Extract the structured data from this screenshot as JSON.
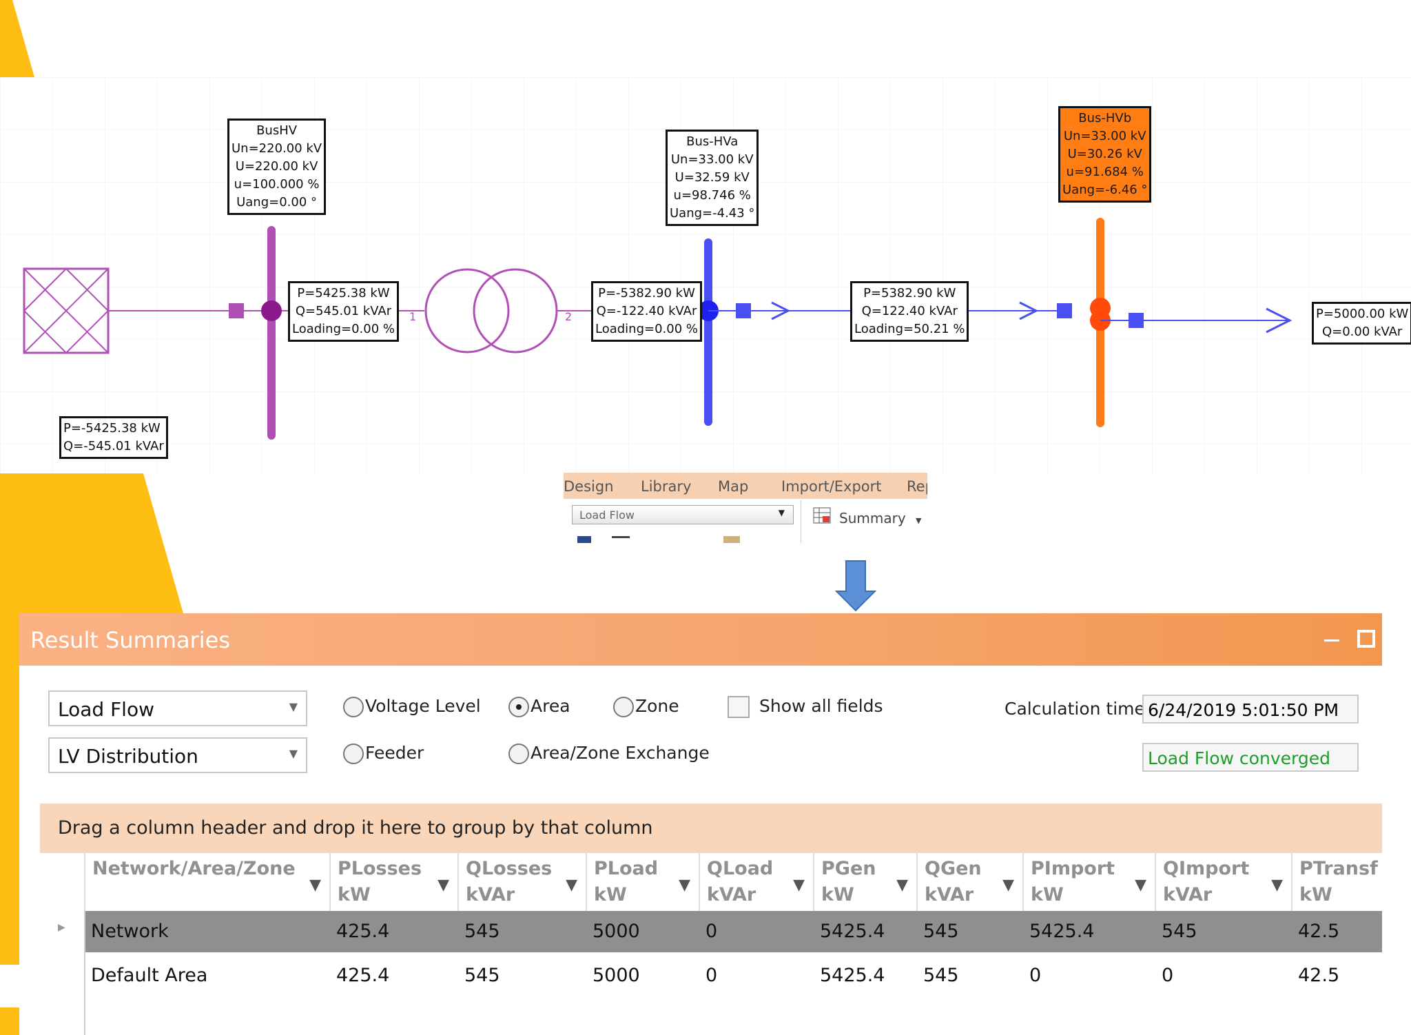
{
  "schematic": {
    "grid_node": {
      "label1": "P=-5425.38 kW",
      "label2": "Q=-545.01 kVAr"
    },
    "bus_hv": {
      "lines": [
        "BusHV",
        "Un=220.00 kV",
        "U=220.00 kV",
        "u=100.000 %",
        "Uang=0.00 °"
      ]
    },
    "trafo_flow": {
      "lines": [
        "P=5425.38 kW",
        "Q=545.01 kVAr",
        "Loading=0.00 %"
      ]
    },
    "trafo_terminal_1": "1",
    "trafo_terminal_2": "2",
    "trafo_flow_secondary": {
      "lines": [
        "P=-5382.90 kW",
        "Q=-122.40 kVAr",
        "Loading=0.00 %"
      ]
    },
    "bus_hva": {
      "lines": [
        "Bus-HVa",
        "Un=33.00 kV",
        "U=32.59 kV",
        "u=98.746 %",
        "Uang=-4.43 °"
      ]
    },
    "line_flow": {
      "lines": [
        "P=5382.90 kW",
        "Q=122.40 kVAr",
        "Loading=50.21 %"
      ]
    },
    "bus_hvb": {
      "lines": [
        "Bus-HVb",
        "Un=33.00 kV",
        "U=30.26 kV",
        "u=91.684 %",
        "Uang=-6.46 °"
      ]
    },
    "load_flow": {
      "lines": [
        "P=5000.00 kW",
        "Q=0.00 kVAr"
      ]
    },
    "colors": {
      "hv": "#b04fb5",
      "mv_a": "#4a4ff2",
      "mv_b": "#ff7a1a",
      "accent_yellow": "#fdbd12"
    }
  },
  "ribbon": {
    "tabs": [
      "Design",
      "Library",
      "Map",
      "Import/Export",
      "Rep"
    ],
    "calc_select": "Load Flow",
    "summary_button": "Summary"
  },
  "panel": {
    "title": "Result Summaries",
    "calc_type": "Load Flow",
    "network_filter": "LV Distribution",
    "radios": {
      "voltage_level": "Voltage Level",
      "area": "Area",
      "zone": "Zone",
      "feeder": "Feeder",
      "area_zone_exchange": "Area/Zone Exchange"
    },
    "selected_radio": "area",
    "show_all_fields": "Show all fields",
    "calc_time_label": "Calculation time:",
    "calc_time_value": "6/24/2019 5:01:50 PM",
    "status": "Load Flow converged",
    "status_color": "#1c9e2a",
    "group_hint": "Drag a column header and drop it here to group by that column",
    "columns": [
      [
        "Network/Area/Zone",
        ""
      ],
      [
        "PLosses",
        "kW"
      ],
      [
        "QLosses",
        "kVAr"
      ],
      [
        "PLoad",
        "kW"
      ],
      [
        "QLoad",
        "kVAr"
      ],
      [
        "PGen",
        "kW"
      ],
      [
        "QGen",
        "kVAr"
      ],
      [
        "PImport",
        "kW"
      ],
      [
        "QImport",
        "kVAr"
      ],
      [
        "PTransf",
        "kW"
      ]
    ],
    "rows": [
      [
        "Network",
        "425.4",
        "545",
        "5000",
        "0",
        "5425.4",
        "545",
        "5425.4",
        "545",
        "42.5"
      ],
      [
        "Default Area",
        "425.4",
        "545",
        "5000",
        "0",
        "5425.4",
        "545",
        "0",
        "0",
        "42.5"
      ]
    ]
  }
}
